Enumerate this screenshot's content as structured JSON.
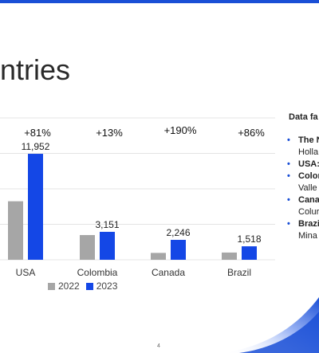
{
  "slide": {
    "title": "ntries",
    "page_number": "4"
  },
  "side_panel": {
    "title": "Data fa",
    "items": [
      {
        "head": "The N",
        "sub": "Holla"
      },
      {
        "head": "USA:",
        "sub": ""
      },
      {
        "head": "Color",
        "sub": "Valle"
      },
      {
        "head": "Cana",
        "sub": "Colur"
      },
      {
        "head": "Brazi",
        "sub": "Mina"
      }
    ]
  },
  "colors": {
    "accent": "#1a4fd6",
    "series_2022": "#a6a6a6",
    "series_2023": "#1447e6"
  },
  "chart_data": {
    "type": "bar",
    "categories": [
      "USA",
      "Colombia",
      "Canada",
      "Brazil"
    ],
    "series": [
      {
        "name": "2022",
        "values": [
          6600,
          2790,
          775,
          816
        ],
        "labels": [
          "",
          "",
          "",
          ""
        ]
      },
      {
        "name": "2023",
        "values": [
          11952,
          3151,
          2246,
          1518
        ],
        "labels": [
          "11,952",
          "3,151",
          "2,246",
          "1,518"
        ]
      }
    ],
    "growth_labels": [
      "+81%",
      "+13%",
      "+190%",
      "+86%"
    ],
    "legend_position": "bottom",
    "ylim": [
      0,
      16000
    ],
    "grid": true
  }
}
